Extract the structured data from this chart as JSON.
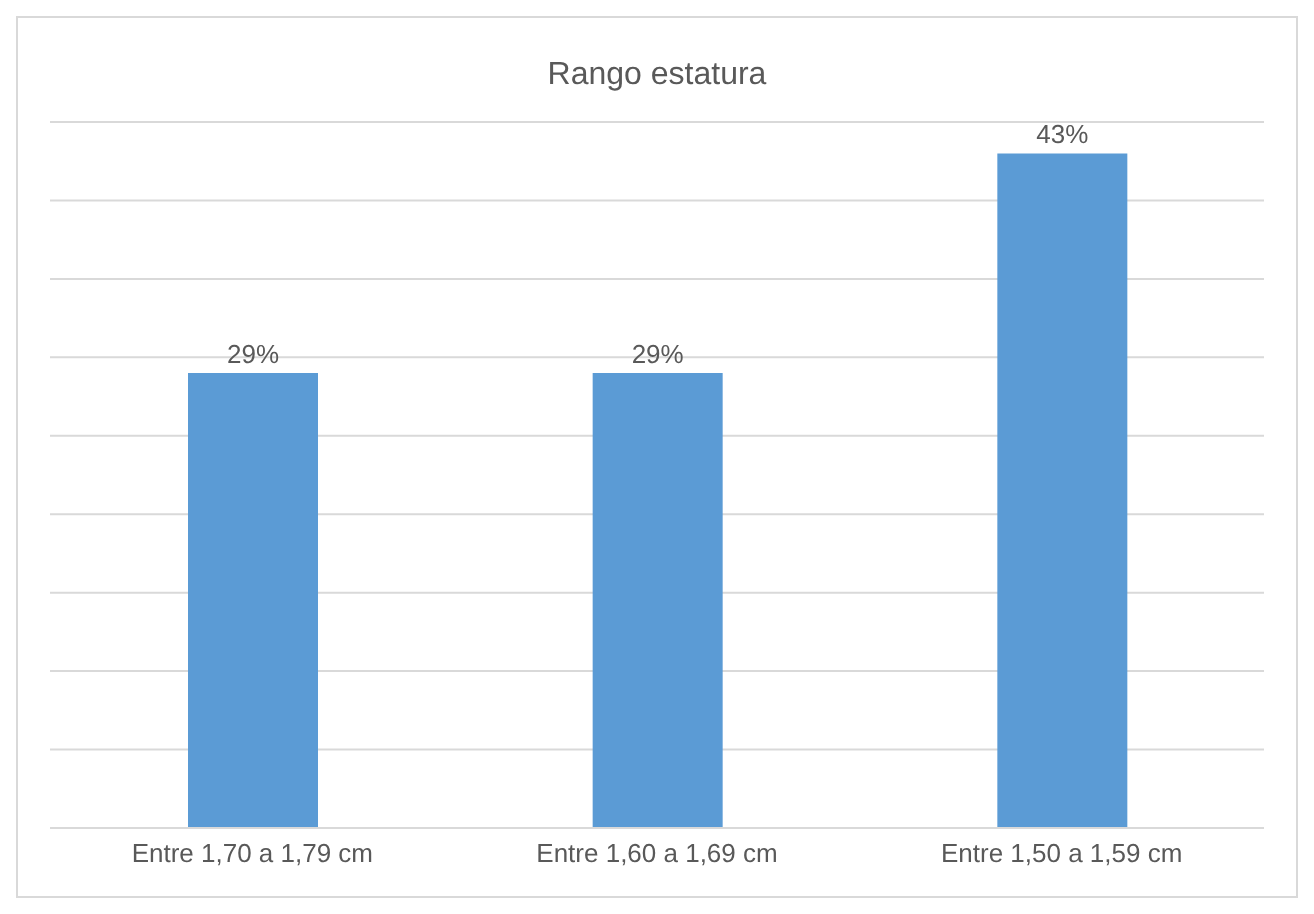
{
  "chart_data": {
    "type": "bar",
    "title": "Rango estatura",
    "categories": [
      "Entre 1,70 a 1,79 cm",
      "Entre 1,60 a 1,69 cm",
      "Entre 1,50 a 1,59 cm"
    ],
    "values": [
      29,
      29,
      43
    ],
    "value_labels": [
      "29%",
      "29%",
      "43%"
    ],
    "color": "#5b9bd5",
    "ylim": [
      0,
      45
    ],
    "yticks": [
      {
        "value": 0,
        "label": null
      },
      {
        "value": 5,
        "label": null
      },
      {
        "value": 10,
        "label": null
      },
      {
        "value": 15,
        "label": null
      },
      {
        "value": 20,
        "label": null
      },
      {
        "value": 25,
        "label": null
      },
      {
        "value": 30,
        "label": null
      },
      {
        "value": 35,
        "label": null
      },
      {
        "value": 40,
        "label": null
      },
      {
        "value": 45,
        "label": null
      }
    ],
    "grid": "y",
    "tick_labels": "x"
  }
}
